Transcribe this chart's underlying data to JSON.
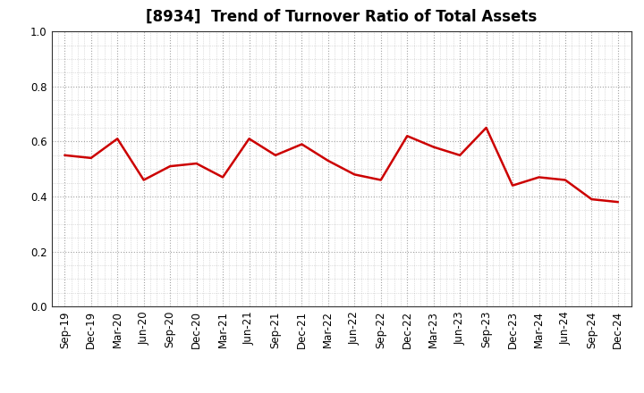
{
  "title": "[8934]  Trend of Turnover Ratio of Total Assets",
  "x_labels": [
    "Sep-19",
    "Dec-19",
    "Mar-20",
    "Jun-20",
    "Sep-20",
    "Dec-20",
    "Mar-21",
    "Jun-21",
    "Sep-21",
    "Dec-21",
    "Mar-22",
    "Jun-22",
    "Sep-22",
    "Dec-22",
    "Mar-23",
    "Jun-23",
    "Sep-23",
    "Dec-23",
    "Mar-24",
    "Jun-24",
    "Sep-24",
    "Dec-24"
  ],
  "y_values": [
    0.55,
    0.54,
    0.61,
    0.46,
    0.51,
    0.52,
    0.47,
    0.61,
    0.55,
    0.59,
    0.53,
    0.48,
    0.46,
    0.62,
    0.58,
    0.55,
    0.65,
    0.44,
    0.47,
    0.46,
    0.39,
    0.38
  ],
  "line_color": "#cc0000",
  "line_width": 1.8,
  "ylim": [
    0.0,
    1.0
  ],
  "yticks": [
    0.0,
    0.2,
    0.4,
    0.6,
    0.8,
    1.0
  ],
  "background_color": "#ffffff",
  "grid_color": "#999999",
  "title_fontsize": 12,
  "tick_fontsize": 8.5,
  "minor_grid_divisions": 4
}
